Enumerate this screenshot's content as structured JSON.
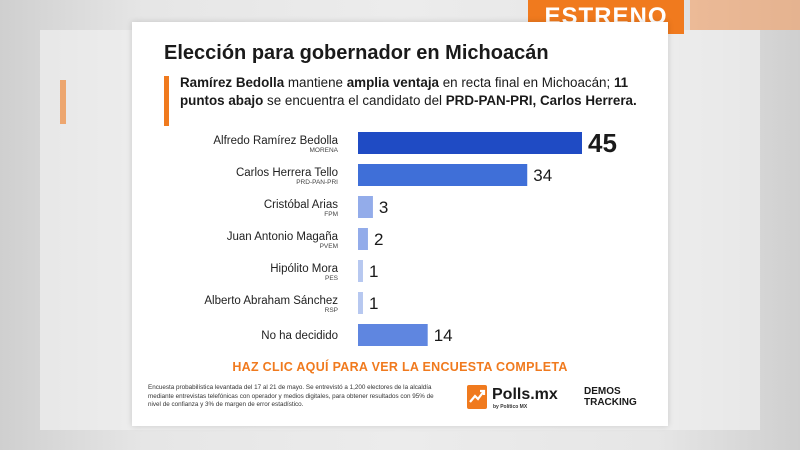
{
  "tag": "ESTRENO",
  "title": "Elección para gobernador en Michoacán",
  "lead": {
    "p1": "Ramírez Bedolla",
    "p2": " mantiene ",
    "p3": "amplia ventaja",
    "p4": " en recta final en Michoacán; ",
    "p5": "11 puntos abajo",
    "p6": " se encuentra el candidato del ",
    "p7": "PRD-PAN-PRI, Carlos Herrera."
  },
  "chart_data": {
    "type": "bar",
    "orientation": "horizontal",
    "categories": [
      "Alfredo Ramírez Bedolla",
      "Carlos Herrera Tello",
      "Cristóbal Arias",
      "Juan Antonio Magaña",
      "Hipólito Mora",
      "Alberto Abraham Sánchez",
      "No ha decidido"
    ],
    "parties": [
      "MORENA",
      "PRD-PAN-PRI",
      "FPM",
      "PVEM",
      "PES",
      "RSP",
      ""
    ],
    "values": [
      45,
      34,
      3,
      2,
      1,
      1,
      14
    ],
    "colors": [
      "#1f4bc4",
      "#3f6fd8",
      "#93acea",
      "#93acea",
      "#b7c8f0",
      "#b7c8f0",
      "#5f86e0"
    ],
    "xlim": [
      0,
      45
    ],
    "grid": false,
    "title": "Elección para gobernador en Michoacán"
  },
  "cta": "HAZ CLIC AQUÍ PARA VER LA ENCUESTA COMPLETA",
  "note": "Encuesta probabilística levantada del 17 al 21 de mayo. Se entrevistó a 1,200 electores de la alcaldía mediante entrevistas telefónicas con operador y medios digitales, para obtener resultados con 95% de nivel de confianza y 3% de margen de error estadístico.",
  "logos": {
    "polls": "Polls.mx",
    "polls_sub": "by Político MX",
    "tracking_1": "DEMOS",
    "tracking_2": "TRACKING"
  },
  "colors": {
    "accent": "#f07a1e",
    "bar_lead": "#1f4bc4"
  },
  "icons": {
    "polls": "chart-arrow-icon"
  }
}
